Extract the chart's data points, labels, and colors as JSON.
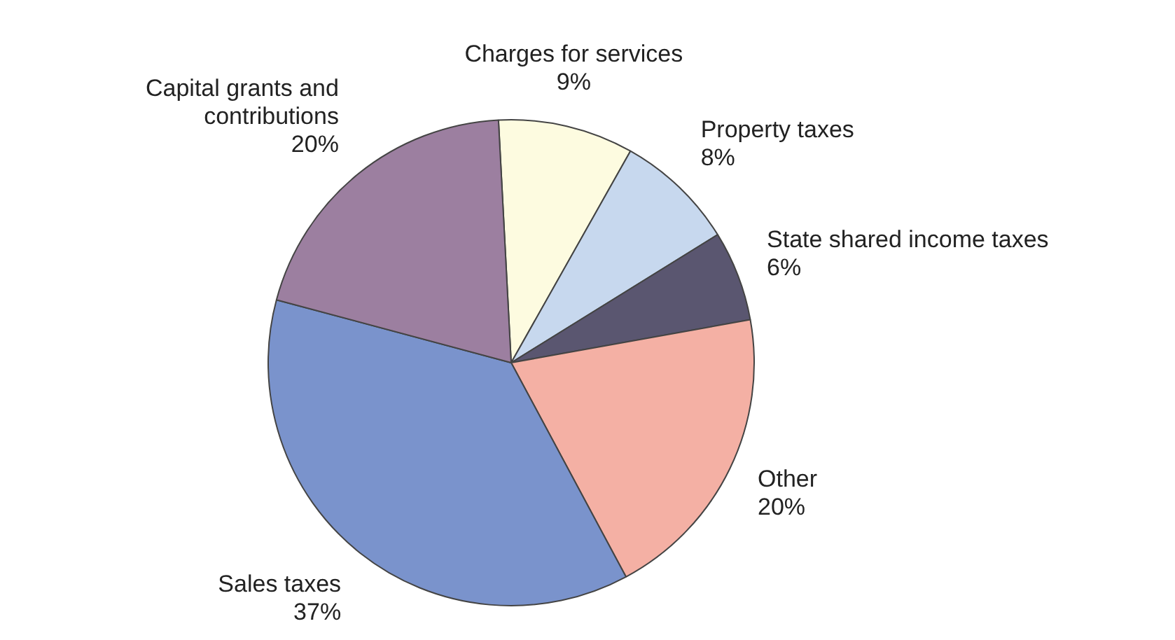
{
  "chart_data": {
    "type": "pie",
    "categories": [
      "Charges for services",
      "Property taxes",
      "State shared income taxes",
      "Other",
      "Sales taxes",
      "Capital grants and contributions"
    ],
    "values": [
      9,
      8,
      6,
      20,
      37,
      20
    ],
    "value_labels": [
      "9%",
      "8%",
      "6%",
      "20%",
      "37%",
      "20%"
    ],
    "colors": [
      "#fdfbe0",
      "#c7d8ee",
      "#5a5670",
      "#f4b0a4",
      "#7a93cc",
      "#9c7fa0"
    ],
    "legend": false
  }
}
